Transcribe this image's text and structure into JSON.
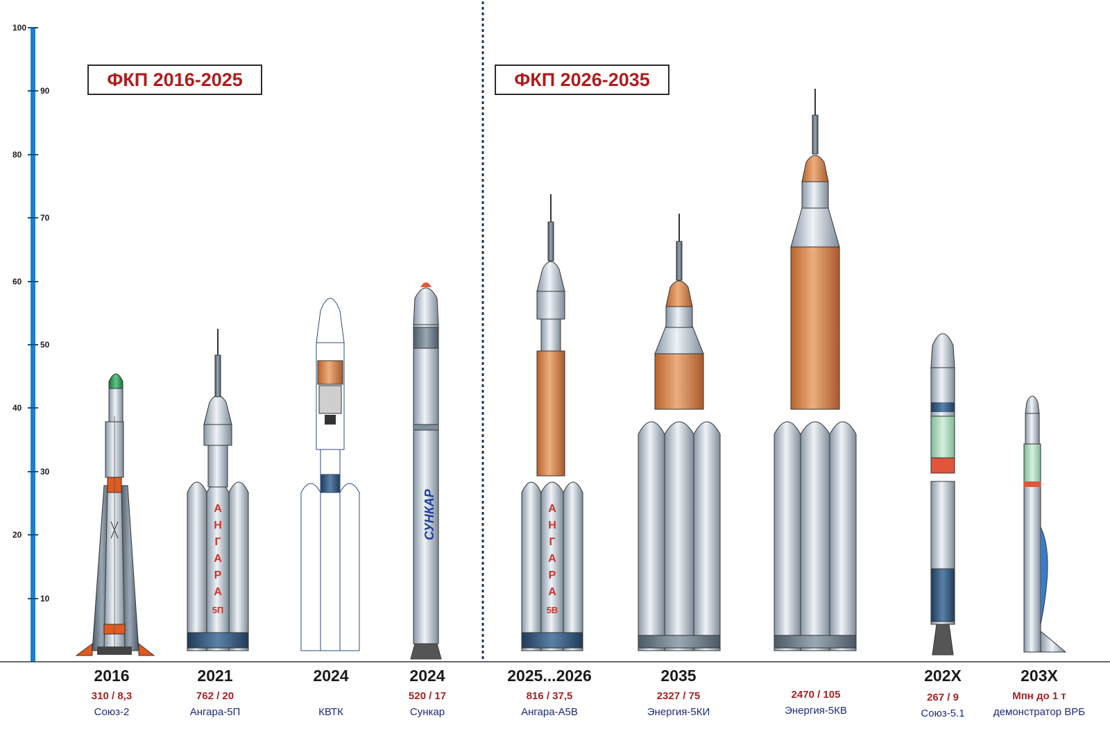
{
  "periods": [
    {
      "label": "ФКП 2016-2025"
    },
    {
      "label": "ФКП 2026-2035"
    }
  ],
  "scale": {
    "max": 100,
    "labels": [
      "100",
      "90",
      "80",
      "70",
      "60",
      "50",
      "40",
      "30",
      "20",
      "10"
    ]
  },
  "vehicles": [
    {
      "year": "2016",
      "stats": "310 / 8,3",
      "name": "Союз-2",
      "height": 46
    },
    {
      "year": "2021",
      "stats": "762 / 20",
      "name": "Ангара-5П",
      "height": 53,
      "body_text": "АНГАРА",
      "body_sub": "5П"
    },
    {
      "year": "2024",
      "stats": "",
      "name": "КВТК",
      "height": 58
    },
    {
      "year": "2024",
      "stats": "520 / 17",
      "name": "Сункар",
      "height": 60,
      "body_text": "СУНКАР"
    },
    {
      "year": "2025...2026",
      "stats": "816 / 37,5",
      "name": "Ангара-А5В",
      "height": 74,
      "body_text": "АНГАРА",
      "body_sub": "5В"
    },
    {
      "year": "2035",
      "stats": "2327 / 75",
      "name": "Энергия-5КИ",
      "height": 71
    },
    {
      "year": "",
      "stats": "2470 / 105",
      "name": "Энергия-5КВ",
      "height": 90
    },
    {
      "year": "202X",
      "stats": "267 / 9",
      "name": "Союз-5.1",
      "height": 53
    },
    {
      "year": "203X",
      "stats": "Мпн до 1 т",
      "name": "демонстратор ВРБ",
      "height": 42
    }
  ],
  "colors": {
    "scale": "#1e7fd0",
    "period_text": "#b01c1c",
    "stats_text": "#a52222",
    "name_text": "#1d2a7a",
    "hull": "#c9d3dc",
    "orange": "#d98a4e",
    "divider": "#1e2b6e"
  }
}
